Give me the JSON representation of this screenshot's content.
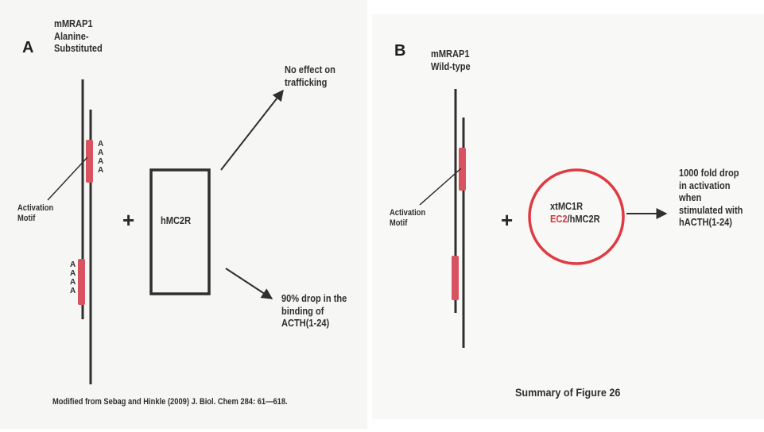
{
  "colors": {
    "motif_red": "#d9525f",
    "circle_red": "#e03a42",
    "ec2_red": "#d9333f",
    "line": "#2f2f2f"
  },
  "panel_a": {
    "letter": "A",
    "protein_label": [
      "mMRAP1",
      "Alanine-",
      "Substituted"
    ],
    "alanines_upper": [
      "A",
      "A",
      "A",
      "A"
    ],
    "alanines_lower": [
      "A",
      "A",
      "A",
      "A"
    ],
    "motif_label": [
      "Activation",
      "Motif"
    ],
    "plus": "+",
    "receptor": "hMC2R",
    "outcome_top": [
      "No effect on",
      "trafficking"
    ],
    "outcome_bottom": [
      "90% drop in the",
      "binding of",
      "ACTH(1-24)"
    ],
    "citation": "Modified from Sebag and Hinkle (2009) J. Biol. Chem 284: 61—618."
  },
  "panel_b": {
    "letter": "B",
    "protein_label": [
      "mMRAP1",
      "Wild-type"
    ],
    "motif_label": [
      "Activation",
      "Motif"
    ],
    "plus": "+",
    "receptor_line1": "xtMC1R",
    "receptor_ec2": "EC2",
    "receptor_rest": "/hMC2R",
    "outcome": [
      "1000 fold drop",
      "in activation",
      "when",
      "stimulated with",
      "hACTH(1-24)"
    ],
    "caption": "Summary of Figure 26"
  }
}
